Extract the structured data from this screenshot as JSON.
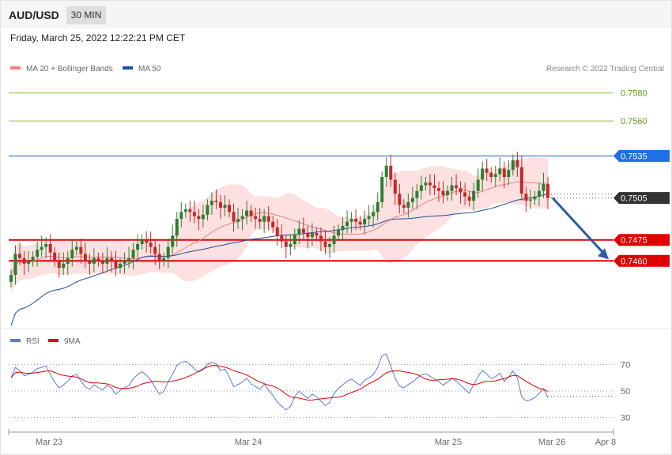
{
  "header": {
    "symbol": "AUD/USD",
    "timeframe": "30 MIN"
  },
  "date_text": "Friday, March 25, 2022 12:22:21 PM CET",
  "legend": {
    "items": [
      {
        "label": "MA 20 + Bollinger Bands",
        "color": "#f08080"
      },
      {
        "label": "MA 50",
        "color": "#1f4e99"
      }
    ],
    "credit": "Research © 2022 Trading Central"
  },
  "rsi_legend": {
    "items": [
      {
        "label": "RSI",
        "color": "#5b7bd5"
      },
      {
        "label": "9MA",
        "color": "#e00000"
      }
    ]
  },
  "colors": {
    "up": "#2e7d32",
    "down": "#c62828",
    "band_fill": "#fde0e0",
    "ma20": "#f08080",
    "ma50": "#1f4e99"
  },
  "chart_data": [
    {
      "type": "candlestick",
      "ylim": [
        0.7415,
        0.759
      ],
      "levels": [
        {
          "value": 0.758,
          "label": "0.7580",
          "style": "green-line"
        },
        {
          "value": 0.756,
          "label": "0.7560",
          "style": "green-line"
        },
        {
          "value": 0.7535,
          "label": "0.7535",
          "style": "blue-line"
        },
        {
          "value": 0.7505,
          "label": "0.7505",
          "style": "current-price"
        },
        {
          "value": 0.7475,
          "label": "0.7475",
          "style": "red-line"
        },
        {
          "value": 0.746,
          "label": "0.7460",
          "style": "red-line"
        }
      ],
      "x_ticks": [
        "Mar 23",
        "Mar 24",
        "Mar 25",
        "Mar 26",
        "Apr 8"
      ],
      "forecast_arrow": {
        "from": 0.7505,
        "to": 0.746
      },
      "close": [
        0.745,
        0.7465,
        0.7462,
        0.7458,
        0.746,
        0.7463,
        0.7468,
        0.747,
        0.7472,
        0.7466,
        0.746,
        0.7455,
        0.7458,
        0.7462,
        0.7468,
        0.747,
        0.7465,
        0.746,
        0.7458,
        0.7462,
        0.746,
        0.7458,
        0.7462,
        0.746,
        0.7455,
        0.7458,
        0.746,
        0.7462,
        0.7468,
        0.7472,
        0.7475,
        0.7473,
        0.747,
        0.7465,
        0.746,
        0.7462,
        0.747,
        0.7478,
        0.749,
        0.7495,
        0.7497,
        0.7495,
        0.7492,
        0.749,
        0.7493,
        0.75,
        0.7503,
        0.7502,
        0.7498,
        0.75,
        0.7495,
        0.7488,
        0.749,
        0.7492,
        0.7496,
        0.7492,
        0.749,
        0.7488,
        0.7492,
        0.7488,
        0.7484,
        0.7478,
        0.7474,
        0.747,
        0.7472,
        0.7479,
        0.7483,
        0.748,
        0.7477,
        0.748,
        0.7478,
        0.7474,
        0.747,
        0.7472,
        0.7478,
        0.7482,
        0.7485,
        0.7488,
        0.749,
        0.7488,
        0.7486,
        0.749,
        0.7492,
        0.7495,
        0.7502,
        0.752,
        0.7528,
        0.7518,
        0.7508,
        0.75,
        0.7498,
        0.7502,
        0.7505,
        0.751,
        0.7514,
        0.7516,
        0.7514,
        0.7512,
        0.751,
        0.7507,
        0.751,
        0.7514,
        0.7512,
        0.7509,
        0.7506,
        0.7503,
        0.751,
        0.7518,
        0.7526,
        0.7523,
        0.752,
        0.7522,
        0.7526,
        0.752,
        0.7525,
        0.7532,
        0.7527,
        0.7508,
        0.7503,
        0.7504,
        0.7506,
        0.751,
        0.7515,
        0.7505
      ],
      "rsi": {
        "ylim": [
          20,
          80
        ],
        "ticks": [
          70,
          50,
          30
        ],
        "last_rsi": 46,
        "last_ma": 46
      }
    }
  ]
}
